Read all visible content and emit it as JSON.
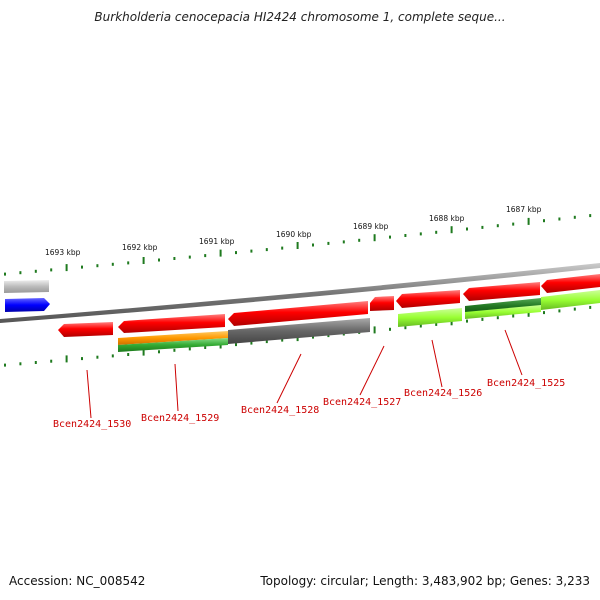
{
  "title": "Burkholderia cenocepacia HI2424 chromosome 1, complete seque...",
  "footer": {
    "accession": "Accession: NC_008542",
    "topology": "Topology: circular; Length: 3,483,902 bp; Genes: 3,233"
  },
  "scale_labels": [
    "1693 kbp",
    "1692 kbp",
    "1691 kbp",
    "1690 kbp",
    "1689 kbp",
    "1688 kbp",
    "1687 kbp"
  ],
  "gene_labels": [
    "Bcen2424_1530",
    "Bcen2424_1529",
    "Bcen2424_1528",
    "Bcen2424_1527",
    "Bcen2424_1526",
    "Bcen2424_1525"
  ],
  "colors": {
    "gene": "#ff0000",
    "gene_label": "#cc0000",
    "backbone": "#888888",
    "ticks": "#1f7a1f",
    "grey_feature": "#666666",
    "blue_feature": "#0000ff",
    "orange_feature": "#ff9900",
    "green_feature": "#33aa33",
    "lime_feature": "#99ff33"
  }
}
